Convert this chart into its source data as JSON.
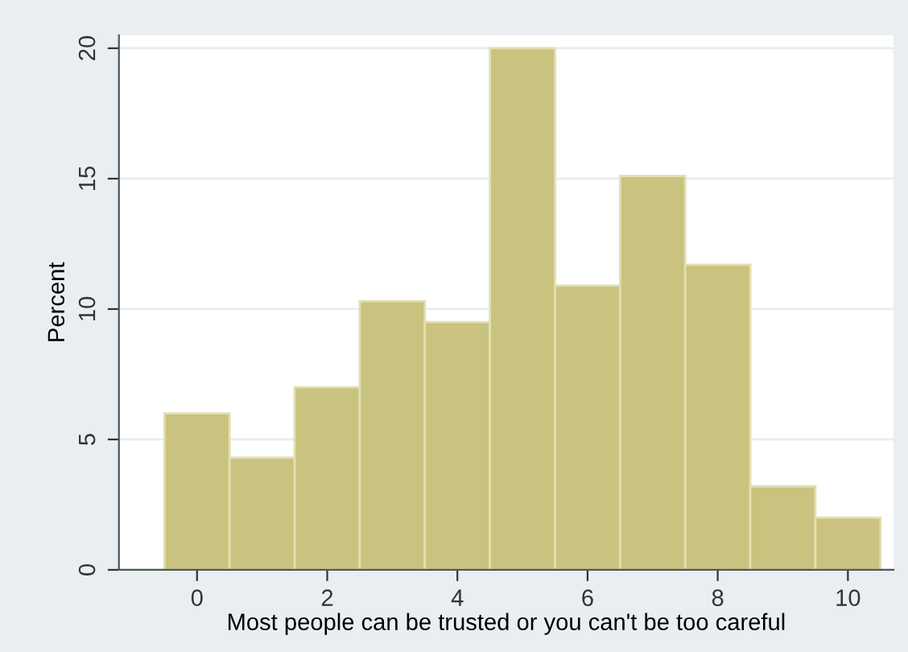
{
  "chart_data": {
    "type": "histogram",
    "xlabel": "Most people can be trusted or you can't be too careful",
    "ylabel": "Percent",
    "bins": [
      -0.5,
      0.5,
      1.5,
      2.5,
      3.5,
      4.5,
      5.5,
      6.5,
      7.5,
      8.5,
      9.5,
      10.5
    ],
    "values": [
      6.0,
      4.3,
      7.0,
      10.3,
      9.5,
      20.0,
      10.9,
      15.1,
      11.7,
      3.2,
      2.0
    ],
    "color": "#c9c37f",
    "xlim": [
      -1.2,
      10.7
    ],
    "xticks": [
      0,
      2,
      4,
      6,
      8,
      10
    ],
    "ylim": [
      0,
      20.5
    ],
    "yticks": [
      0,
      5,
      10,
      15,
      20
    ],
    "grid": "y",
    "legend": false
  }
}
